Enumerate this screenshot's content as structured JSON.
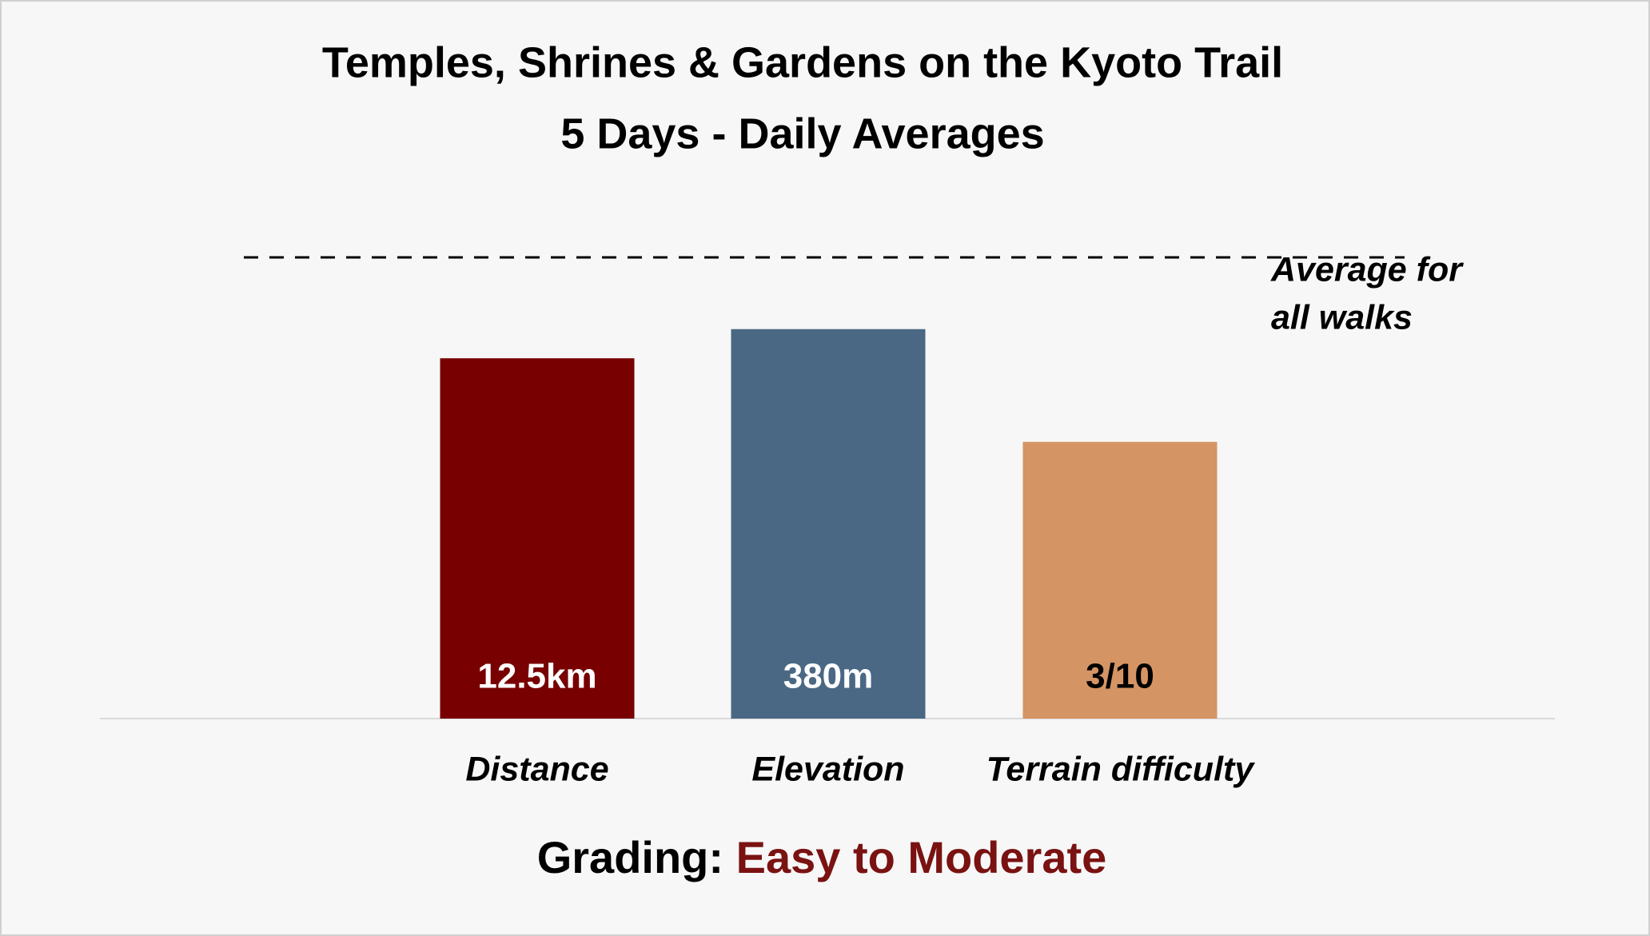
{
  "chart_data": {
    "type": "bar",
    "title": "Temples, Shrines & Gardens on the Kyoto Trail",
    "subtitle": "5 Days - Daily Averages",
    "categories": [
      "Distance",
      "Elevation",
      "Terrain difficulty"
    ],
    "values": [
      12.5,
      380,
      3
    ],
    "value_labels": [
      "12.5km",
      "380m",
      "3/10"
    ],
    "colors": [
      "#780000",
      "#4a6884",
      "#d59464"
    ],
    "label_colors": [
      "#ffffff",
      "#ffffff",
      "#000000"
    ],
    "reference": {
      "label": [
        "Average for",
        "all walks"
      ],
      "values": [
        16,
        450,
        5
      ]
    },
    "grading_label": "Grading:",
    "grading": "Easy to Moderate",
    "grading_color": "#7a1212"
  }
}
